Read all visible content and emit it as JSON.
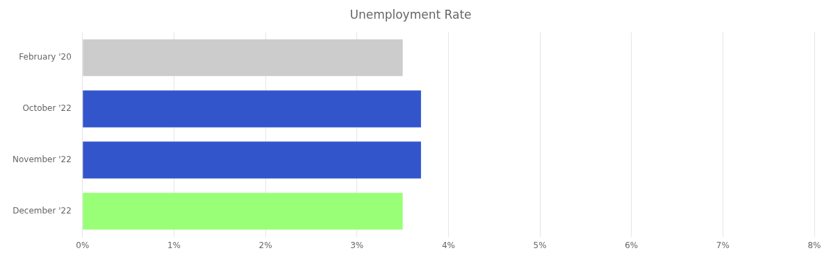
{
  "chart_data": {
    "type": "bar",
    "orientation": "horizontal",
    "title": "Unemployment Rate",
    "categories": [
      "February '20",
      "October '22",
      "November '22",
      "December '22"
    ],
    "values": [
      3.5,
      3.7,
      3.7,
      3.5
    ],
    "colors": [
      "#cccccc",
      "#3355cc",
      "#3355cc",
      "#99ff77"
    ],
    "xlim": [
      0,
      8
    ],
    "xticks": [
      {
        "value": 0,
        "label": "0%"
      },
      {
        "value": 1,
        "label": "1%"
      },
      {
        "value": 2,
        "label": "2%"
      },
      {
        "value": 3,
        "label": "3%"
      },
      {
        "value": 4,
        "label": "4%"
      },
      {
        "value": 5,
        "label": "5%"
      },
      {
        "value": 6,
        "label": "6%"
      },
      {
        "value": 7,
        "label": "7%"
      },
      {
        "value": 8,
        "label": "8%"
      }
    ],
    "grid": true
  }
}
